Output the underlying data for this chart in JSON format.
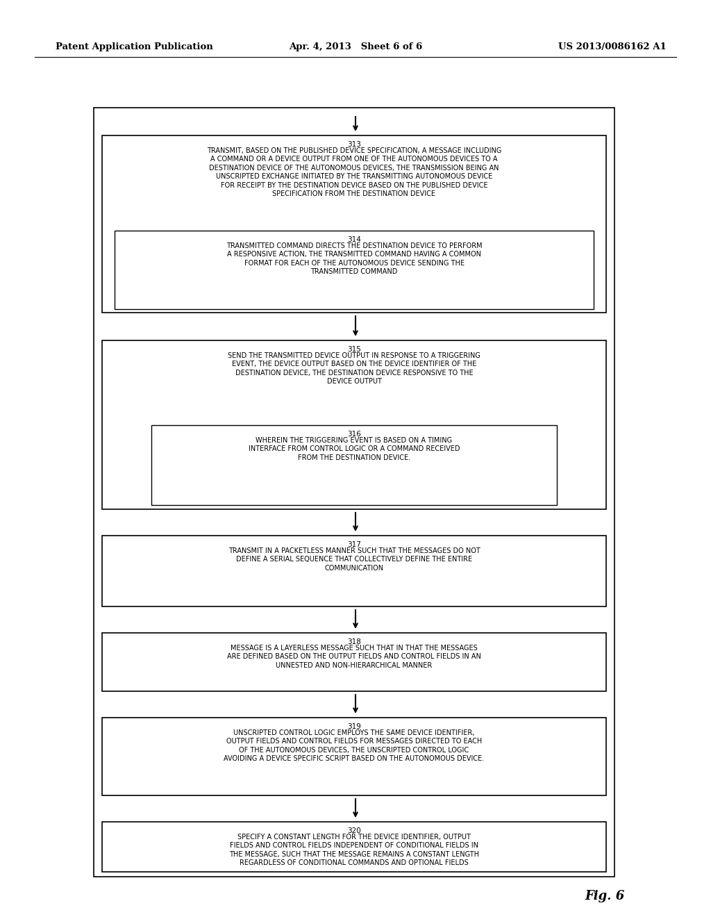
{
  "header_left": "Patent Application Publication",
  "header_mid": "Apr. 4, 2013   Sheet 6 of 6",
  "header_right": "US 2013/0086162 A1",
  "fig_label": "Fig. 6",
  "background_color": "#ffffff",
  "blocks": {
    "b313": {
      "label": "313",
      "text": "TRANSMIT, BASED ON THE PUBLISHED DEVICE SPECIFICATION, A MESSAGE INCLUDING\nA COMMAND OR A DEVICE OUTPUT FROM ONE OF THE AUTONOMOUS DEVICES TO A\nDESTINATION DEVICE OF THE AUTONOMOUS DEVICES, THE TRANSMISSION BEING AN\nUNSCRIPTED EXCHANGE INITIATED BY THE TRANSMITTING AUTONOMOUS DEVICE\nFOR RECEIPT BY THE DESTINATION DEVICE BASED ON THE PUBLISHED DEVICE\nSPECIFICATION FROM THE DESTINATION DEVICE"
    },
    "b314": {
      "label": "314",
      "text": "TRANSMITTED COMMAND DIRECTS THE DESTINATION DEVICE TO PERFORM\nA RESPONSIVE ACTION, THE TRANSMITTED COMMAND HAVING A COMMON\nFORMAT FOR EACH OF THE AUTONOMOUS DEVICE SENDING THE\nTRANSMITTED COMMAND"
    },
    "b315": {
      "label": "315",
      "text": "SEND THE TRANSMITTED DEVICE OUTPUT IN RESPONSE TO A TRIGGERING\nEVENT, THE DEVICE OUTPUT BASED ON THE DEVICE IDENTIFIER OF THE\nDESTINATION DEVICE, THE DESTINATION DEVICE RESPONSIVE TO THE\nDEVICE OUTPUT"
    },
    "b316": {
      "label": "316",
      "text": "WHEREIN THE TRIGGERING EVENT IS BASED ON A TIMING\nINTERFACE FROM CONTROL LOGIC OR A COMMAND RECEIVED\nFROM THE DESTINATION DEVICE."
    },
    "b317": {
      "label": "317",
      "text": "TRANSMIT IN A PACKETLESS MANNER SUCH THAT THE MESSAGES DO NOT\nDEFINE A SERIAL SEQUENCE THAT COLLECTIVELY DEFINE THE ENTIRE\nCOMMUNICATION"
    },
    "b318": {
      "label": "318",
      "text": "MESSAGE IS A LAYERLESS MESSAGE SUCH THAT IN THAT THE MESSAGES\nARE DEFINED BASED ON THE OUTPUT FIELDS AND CONTROL FIELDS IN AN\nUNNESTED AND NON-HIERARCHICAL MANNER"
    },
    "b319": {
      "label": "319",
      "text": "UNSCRIPTED CONTROL LOGIC EMPLOYS THE SAME DEVICE IDENTIFIER,\nOUTPUT FIELDS AND CONTROL FIELDS FOR MESSAGES DIRECTED TO EACH\nOF THE AUTONOMOUS DEVICES, THE UNSCRIPTED CONTROL LOGIC\nAVOIDING A DEVICE SPECIFIC SCRIPT BASED ON THE AUTONOMOUS DEVICE."
    },
    "b320": {
      "label": "320",
      "text": "SPECIFY A CONSTANT LENGTH FOR THE DEVICE IDENTIFIER, OUTPUT\nFIELDS AND CONTROL FIELDS INDEPENDENT OF CONDITIONAL FIELDS IN\nTHE MESSAGE, SUCH THAT THE MESSAGE REMAINS A CONSTANT LENGTH\nREGARDLESS OF CONDITIONAL COMMANDS AND OPTIONAL FIELDS"
    }
  }
}
